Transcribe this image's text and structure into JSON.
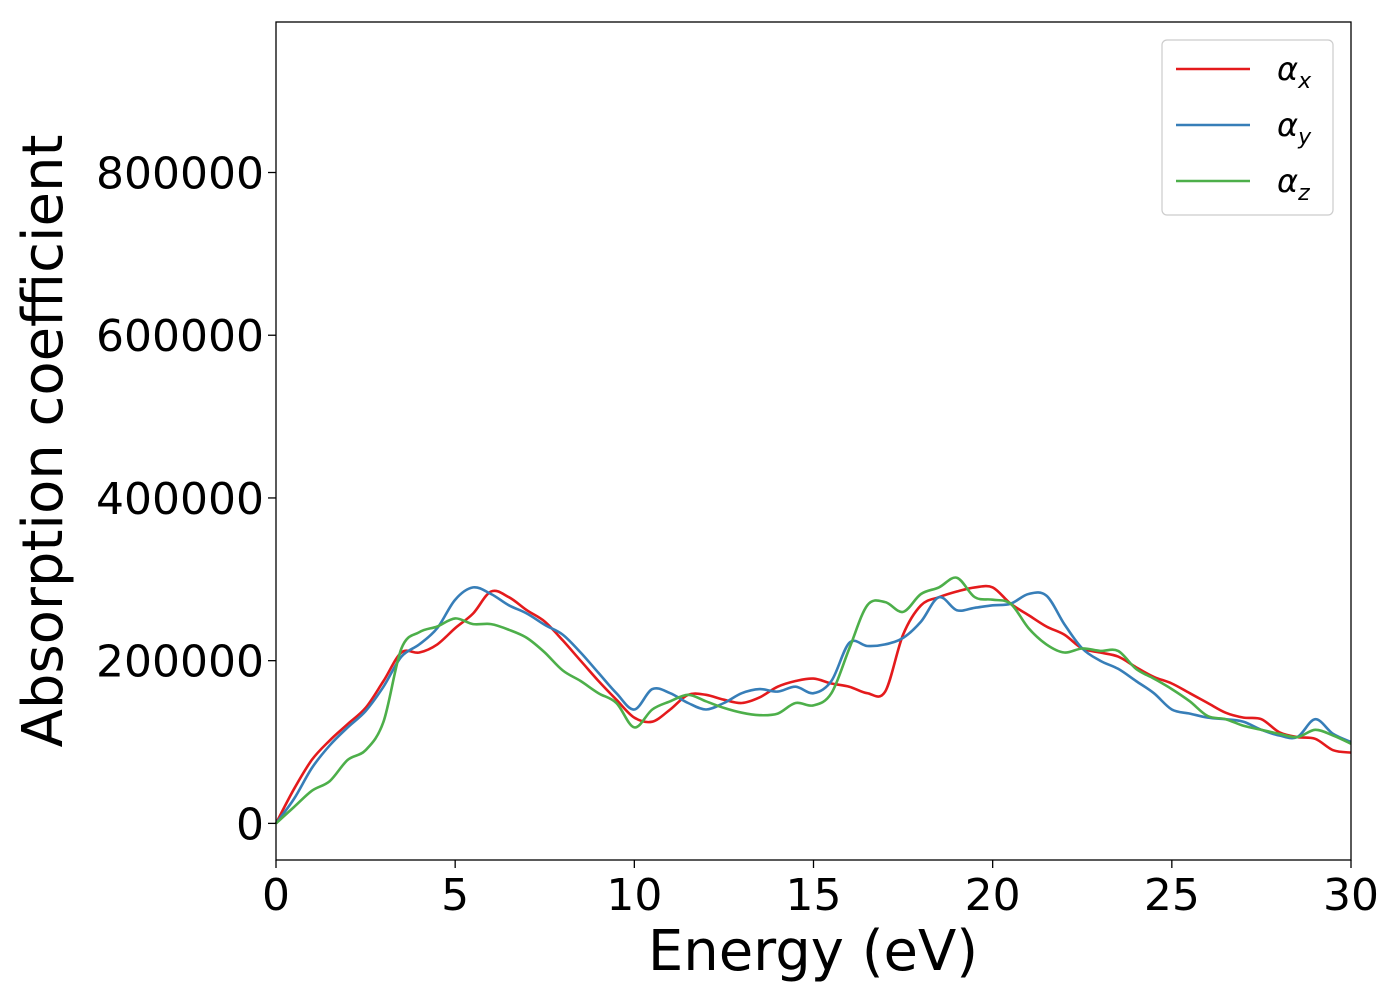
{
  "chart_data": {
    "type": "line",
    "xlabel": "Energy (eV)",
    "ylabel": "Absorption coefficient",
    "xlim": [
      0,
      30
    ],
    "ylim": [
      -45000,
      985000
    ],
    "xticks": [
      0,
      5,
      10,
      15,
      20,
      25,
      30
    ],
    "yticks": [
      0,
      200000,
      400000,
      600000,
      800000
    ],
    "grid": false,
    "legend_position": "top-right",
    "series": [
      {
        "name": "αx",
        "color": "#e41a1c",
        "x": [
          0,
          0.5,
          1,
          1.5,
          2,
          2.5,
          3,
          3.5,
          4,
          4.5,
          5,
          5.5,
          6,
          6.5,
          7,
          7.5,
          8,
          8.5,
          9,
          9.5,
          10,
          10.5,
          11,
          11.5,
          12,
          12.5,
          13,
          13.5,
          14,
          14.5,
          15,
          15.5,
          16,
          16.5,
          17,
          17.5,
          18,
          18.5,
          19,
          19.5,
          20,
          20.5,
          21,
          21.5,
          22,
          22.5,
          23,
          23.5,
          24,
          24.5,
          25,
          25.5,
          26,
          26.5,
          27,
          27.5,
          28,
          28.5,
          29,
          29.5,
          30
        ],
        "y": [
          0,
          42000,
          78000,
          102000,
          122000,
          142000,
          175000,
          210000,
          210000,
          220000,
          240000,
          258000,
          285000,
          278000,
          262000,
          248000,
          225000,
          200000,
          175000,
          152000,
          130000,
          125000,
          140000,
          158000,
          158000,
          152000,
          148000,
          155000,
          168000,
          175000,
          178000,
          172000,
          168000,
          160000,
          162000,
          232000,
          268000,
          278000,
          285000,
          290000,
          290000,
          270000,
          256000,
          242000,
          232000,
          215000,
          210000,
          205000,
          192000,
          180000,
          172000,
          160000,
          148000,
          136000,
          130000,
          128000,
          112000,
          106000,
          104000,
          90000,
          87000
        ]
      },
      {
        "name": "αy",
        "color": "#377eb8",
        "x": [
          0,
          0.5,
          1,
          1.5,
          2,
          2.5,
          3,
          3.5,
          4,
          4.5,
          5,
          5.5,
          6,
          6.5,
          7,
          7.5,
          8,
          8.5,
          9,
          9.5,
          10,
          10.5,
          11,
          11.5,
          12,
          12.5,
          13,
          13.5,
          14,
          14.5,
          15,
          15.5,
          16,
          16.5,
          17,
          17.5,
          18,
          18.5,
          19,
          19.5,
          20,
          20.5,
          21,
          21.5,
          22,
          22.5,
          23,
          23.5,
          24,
          24.5,
          25,
          25.5,
          26,
          26.5,
          27,
          27.5,
          28,
          28.5,
          29,
          29.5,
          30
        ],
        "y": [
          0,
          30000,
          68000,
          96000,
          118000,
          138000,
          168000,
          205000,
          220000,
          240000,
          275000,
          290000,
          282000,
          268000,
          258000,
          244000,
          232000,
          210000,
          185000,
          160000,
          140000,
          165000,
          160000,
          148000,
          140000,
          148000,
          160000,
          165000,
          162000,
          168000,
          160000,
          175000,
          222000,
          218000,
          220000,
          228000,
          248000,
          278000,
          262000,
          265000,
          268000,
          270000,
          282000,
          280000,
          245000,
          215000,
          200000,
          190000,
          175000,
          160000,
          140000,
          135000,
          130000,
          128000,
          125000,
          115000,
          108000,
          106000,
          128000,
          110000,
          100000
        ]
      },
      {
        "name": "αz",
        "color": "#4daf4a",
        "x": [
          0,
          0.5,
          1,
          1.5,
          2,
          2.5,
          3,
          3.5,
          4,
          4.5,
          5,
          5.5,
          6,
          6.5,
          7,
          7.5,
          8,
          8.5,
          9,
          9.5,
          10,
          10.5,
          11,
          11.5,
          12,
          12.5,
          13,
          13.5,
          14,
          14.5,
          15,
          15.5,
          16,
          16.5,
          17,
          17.5,
          18,
          18.5,
          19,
          19.5,
          20,
          20.5,
          21,
          21.5,
          22,
          22.5,
          23,
          23.5,
          24,
          24.5,
          25,
          25.5,
          26,
          26.5,
          27,
          27.5,
          28,
          28.5,
          29,
          29.5,
          30
        ],
        "y": [
          0,
          20000,
          40000,
          52000,
          78000,
          90000,
          125000,
          215000,
          235000,
          242000,
          252000,
          245000,
          245000,
          238000,
          228000,
          210000,
          188000,
          175000,
          160000,
          148000,
          118000,
          140000,
          150000,
          158000,
          150000,
          142000,
          136000,
          133000,
          135000,
          148000,
          145000,
          160000,
          215000,
          268000,
          272000,
          260000,
          282000,
          290000,
          302000,
          278000,
          275000,
          270000,
          240000,
          220000,
          210000,
          215000,
          212000,
          212000,
          190000,
          178000,
          165000,
          150000,
          132000,
          128000,
          120000,
          115000,
          110000,
          106000,
          115000,
          108000,
          98000
        ]
      }
    ]
  },
  "legend": {
    "entries": [
      {
        "base": "α",
        "sub": "x",
        "color": "#e41a1c"
      },
      {
        "base": "α",
        "sub": "y",
        "color": "#377eb8"
      },
      {
        "base": "α",
        "sub": "z",
        "color": "#4daf4a"
      }
    ]
  }
}
